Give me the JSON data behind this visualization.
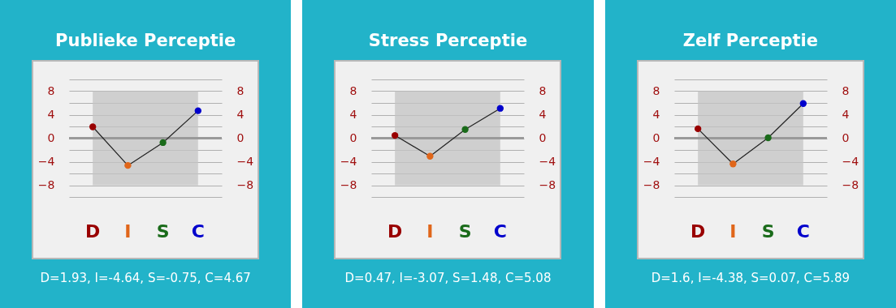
{
  "chart_data": [
    {
      "type": "line",
      "title": "Publieke Perceptie",
      "categories": [
        "D",
        "I",
        "S",
        "C"
      ],
      "series": [
        {
          "color": "#222222",
          "colors": [
            "#990000",
            "#e0661a",
            "#1a6b1a",
            "#0000cc"
          ],
          "values": [
            1.93,
            -4.64,
            -0.75,
            4.67
          ]
        }
      ],
      "ylim": [
        -10,
        10
      ],
      "yticks": [
        {
          "value": -10,
          "label": null
        },
        -8,
        {
          "value": -6,
          "label": null
        },
        -4,
        {
          "value": -2,
          "label": null
        },
        0,
        {
          "value": 2,
          "label": null
        },
        4,
        {
          "value": 6,
          "label": null
        },
        8,
        {
          "value": 10,
          "label": null
        }
      ],
      "y2lim": [
        -10,
        10
      ],
      "y2ticks": [
        -8,
        -4,
        0,
        4,
        8
      ],
      "grid": true,
      "marker": "circle",
      "bands": [
        {
          "axis": "y",
          "from": -8,
          "to": 8,
          "color": "#c4c4c4"
        }
      ],
      "ref_lines": [
        {
          "axis": "y",
          "value": 0,
          "color": "#999999"
        }
      ],
      "annotations": [
        "D=1.93, I=-4.64, S=-0.75, C=4.67"
      ]
    },
    {
      "type": "line",
      "title": "Stress Perceptie",
      "categories": [
        "D",
        "I",
        "S",
        "C"
      ],
      "series": [
        {
          "color": "#222222",
          "colors": [
            "#990000",
            "#e0661a",
            "#1a6b1a",
            "#0000cc"
          ],
          "values": [
            0.47,
            -3.07,
            1.48,
            5.08
          ]
        }
      ],
      "ylim": [
        -10,
        10
      ],
      "yticks": [
        {
          "value": -10,
          "label": null
        },
        -8,
        {
          "value": -6,
          "label": null
        },
        -4,
        {
          "value": -2,
          "label": null
        },
        0,
        {
          "value": 2,
          "label": null
        },
        4,
        {
          "value": 6,
          "label": null
        },
        8,
        {
          "value": 10,
          "label": null
        }
      ],
      "y2lim": [
        -10,
        10
      ],
      "y2ticks": [
        -8,
        -4,
        0,
        4,
        8
      ],
      "grid": true,
      "marker": "circle",
      "bands": [
        {
          "axis": "y",
          "from": -8,
          "to": 8,
          "color": "#c4c4c4"
        }
      ],
      "ref_lines": [
        {
          "axis": "y",
          "value": 0,
          "color": "#999999"
        }
      ],
      "annotations": [
        "D=0.47, I=-3.07, S=1.48, C=5.08"
      ]
    },
    {
      "type": "line",
      "title": "Zelf Perceptie",
      "categories": [
        "D",
        "I",
        "S",
        "C"
      ],
      "series": [
        {
          "color": "#222222",
          "colors": [
            "#990000",
            "#e0661a",
            "#1a6b1a",
            "#0000cc"
          ],
          "values": [
            1.6,
            -4.38,
            0.07,
            5.89
          ]
        }
      ],
      "ylim": [
        -10,
        10
      ],
      "yticks": [
        {
          "value": -10,
          "label": null
        },
        -8,
        {
          "value": -6,
          "label": null
        },
        -4,
        {
          "value": -2,
          "label": null
        },
        0,
        {
          "value": 2,
          "label": null
        },
        4,
        {
          "value": 6,
          "label": null
        },
        8,
        {
          "value": 10,
          "label": null
        }
      ],
      "y2lim": [
        -10,
        10
      ],
      "y2ticks": [
        -8,
        -4,
        0,
        4,
        8
      ],
      "grid": true,
      "marker": "circle",
      "bands": [
        {
          "axis": "y",
          "from": -8,
          "to": 8,
          "color": "#c4c4c4"
        }
      ],
      "ref_lines": [
        {
          "axis": "y",
          "value": 0,
          "color": "#999999"
        }
      ],
      "annotations": [
        "D=1.6, I=-4.38, S=0.07, C=5.89"
      ]
    }
  ]
}
